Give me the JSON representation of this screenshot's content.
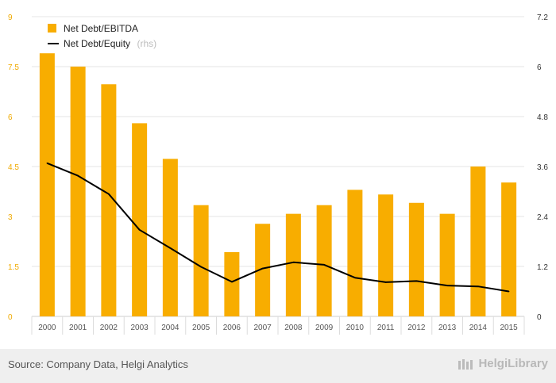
{
  "chart_data": {
    "type": "bar+line",
    "categories": [
      "2000",
      "2001",
      "2002",
      "2003",
      "2004",
      "2005",
      "2006",
      "2007",
      "2008",
      "2009",
      "2010",
      "2011",
      "2012",
      "2013",
      "2014",
      "2015"
    ],
    "series": [
      {
        "name": "Net Debt/EBITDA",
        "type": "bar",
        "axis": "left",
        "color": "#f8ad00",
        "values": [
          7.9,
          7.5,
          6.97,
          5.8,
          4.73,
          3.34,
          1.93,
          2.78,
          3.08,
          3.34,
          3.8,
          3.66,
          3.41,
          3.08,
          4.5,
          4.02
        ]
      },
      {
        "name": "Net Debt/Equity",
        "name_suffix": "(rhs)",
        "type": "line",
        "axis": "right",
        "color": "#000000",
        "values": [
          3.68,
          3.38,
          2.94,
          2.08,
          1.64,
          1.19,
          0.83,
          1.15,
          1.3,
          1.24,
          0.93,
          0.82,
          0.85,
          0.74,
          0.72,
          0.6
        ]
      }
    ],
    "yleft": {
      "min": 0,
      "max": 9,
      "ticks": [
        "0",
        "1.5",
        "3",
        "4.5",
        "6",
        "7.5",
        "9"
      ]
    },
    "yright": {
      "min": 0,
      "max": 7.2,
      "ticks": [
        "0",
        "1.2",
        "2.4",
        "3.6",
        "4.8",
        "6",
        "7.2"
      ]
    },
    "grid": true,
    "legend_position": "top-left"
  },
  "footer": {
    "source": "Source: Company Data, Helgi Analytics",
    "brand": "HelgiLibrary"
  }
}
